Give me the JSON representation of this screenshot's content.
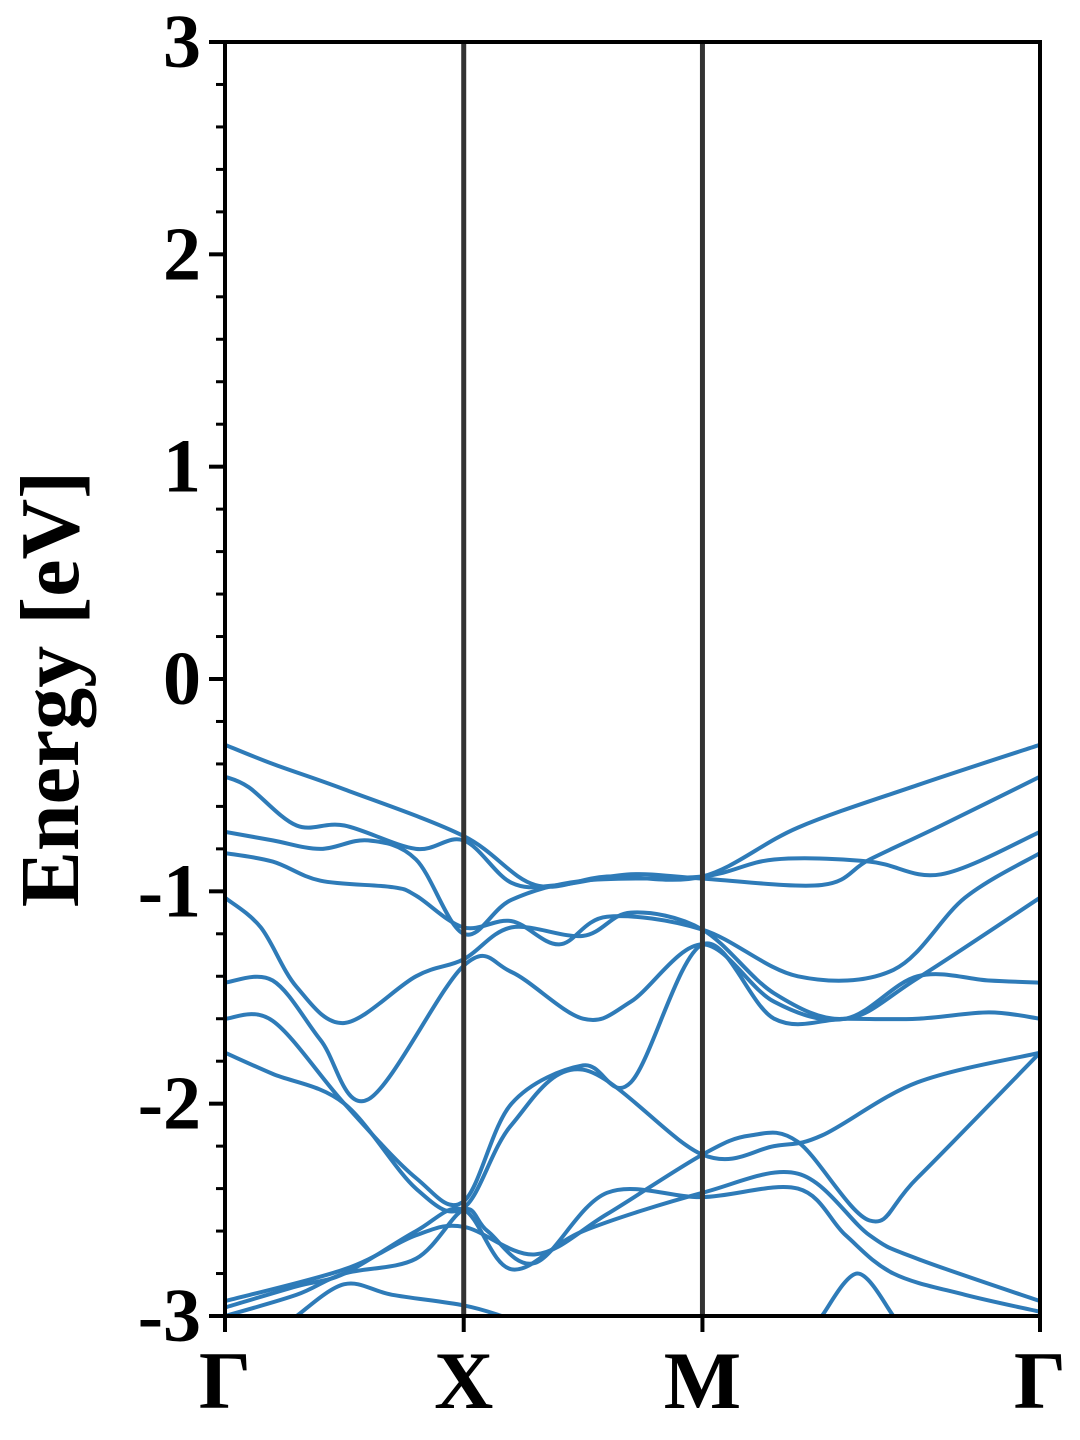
{
  "chart_data": {
    "type": "line",
    "title": "",
    "xlabel": "",
    "ylabel": "Energy [eV]",
    "ylim": [
      -3,
      3
    ],
    "yticks": [
      -3,
      -2,
      -1,
      0,
      1,
      2,
      3
    ],
    "yminor_step": 0.2,
    "grid": false,
    "legend": "none",
    "line_color": "#2e7bb8",
    "divider_color": "#333333",
    "kpath": [
      {
        "label": "Γ",
        "x": 0.0
      },
      {
        "label": "X",
        "x": 1.0
      },
      {
        "label": "M",
        "x": 2.0
      },
      {
        "label": "Γ",
        "x": 3.414
      }
    ],
    "xlim": [
      0.0,
      3.414
    ],
    "series": [
      {
        "x": [
          0,
          0.2,
          0.5,
          1.0,
          1.3,
          1.6,
          2.0,
          2.4,
          2.9,
          3.414
        ],
        "y": [
          -0.31,
          -0.4,
          -0.52,
          -0.74,
          -0.97,
          -0.93,
          -0.93,
          -0.7,
          -0.5,
          -0.31
        ]
      },
      {
        "x": [
          0,
          0.1,
          0.3,
          0.5,
          0.8,
          1.0,
          1.2,
          1.4,
          1.7,
          2.0,
          2.5,
          2.7,
          3.0,
          3.414
        ],
        "y": [
          -0.46,
          -0.51,
          -0.69,
          -0.69,
          -0.8,
          -0.76,
          -0.96,
          -0.97,
          -0.92,
          -0.94,
          -0.97,
          -0.85,
          -0.69,
          -0.46
        ]
      },
      {
        "x": [
          0,
          0.2,
          0.4,
          0.6,
          0.8,
          1.0,
          1.2,
          1.5,
          2.0,
          2.3,
          2.7,
          3.0,
          3.414
        ],
        "y": [
          -0.72,
          -0.76,
          -0.8,
          -0.76,
          -0.85,
          -1.2,
          -1.04,
          -0.95,
          -0.93,
          -0.85,
          -0.86,
          -0.92,
          -0.72
        ]
      },
      {
        "x": [
          0,
          0.2,
          0.4,
          0.7,
          0.8,
          1.0,
          1.2,
          1.4,
          1.6,
          2.0,
          2.4,
          2.8,
          3.1,
          3.414
        ],
        "y": [
          -0.82,
          -0.86,
          -0.95,
          -0.98,
          -1.02,
          -1.17,
          -1.14,
          -1.25,
          -1.12,
          -1.18,
          -1.4,
          -1.37,
          -1.03,
          -0.82
        ]
      },
      {
        "x": [
          0,
          0.15,
          0.3,
          0.5,
          0.8,
          1.0,
          1.2,
          1.5,
          1.7,
          2.0,
          2.3,
          2.6,
          2.9,
          3.414
        ],
        "y": [
          -1.03,
          -1.17,
          -1.45,
          -1.62,
          -1.4,
          -1.32,
          -1.17,
          -1.21,
          -1.1,
          -1.18,
          -1.48,
          -1.6,
          -1.41,
          -1.03
        ]
      },
      {
        "x": [
          0,
          0.2,
          0.4,
          0.6,
          1.0,
          1.2,
          1.5,
          1.7,
          2.0,
          2.3,
          2.6,
          2.9,
          3.2,
          3.414
        ],
        "y": [
          -1.43,
          -1.42,
          -1.7,
          -1.98,
          -1.35,
          -1.38,
          -1.6,
          -1.52,
          -1.25,
          -1.52,
          -1.6,
          -1.4,
          -1.42,
          -1.43
        ]
      },
      {
        "x": [
          0,
          0.2,
          0.5,
          0.8,
          1.0,
          1.2,
          1.5,
          1.7,
          2.0,
          2.3,
          2.6,
          2.9,
          3.2,
          3.414
        ],
        "y": [
          -1.6,
          -1.61,
          -2.0,
          -2.35,
          -2.46,
          -2.0,
          -1.82,
          -1.9,
          -1.25,
          -1.6,
          -1.6,
          -1.6,
          -1.57,
          -1.6
        ]
      },
      {
        "x": [
          0,
          0.2,
          0.5,
          0.8,
          1.0,
          1.2,
          1.5,
          2.0,
          2.3,
          2.5,
          2.9,
          3.414
        ],
        "y": [
          -1.76,
          -1.86,
          -2.0,
          -2.4,
          -2.49,
          -2.1,
          -1.84,
          -2.24,
          -2.2,
          -2.15,
          -1.9,
          -1.76
        ]
      },
      {
        "x": [
          0,
          0.5,
          0.8,
          1.0,
          1.3,
          1.6,
          2.0,
          2.2,
          2.4,
          2.7,
          2.9,
          3.414
        ],
        "y": [
          -2.93,
          -2.78,
          -2.62,
          -2.58,
          -2.71,
          -2.52,
          -2.24,
          -2.15,
          -2.18,
          -2.55,
          -2.35,
          -1.76
        ]
      },
      {
        "x": [
          0,
          0.3,
          0.5,
          0.8,
          1.0,
          1.2,
          1.5,
          2.0,
          2.4,
          2.7,
          2.9,
          3.414
        ],
        "y": [
          -2.96,
          -2.86,
          -2.8,
          -2.6,
          -2.5,
          -2.78,
          -2.6,
          -2.42,
          -2.33,
          -2.62,
          -2.73,
          -2.93
        ]
      },
      {
        "x": [
          0,
          0.3,
          0.5,
          0.8,
          1.0,
          1.1,
          1.3,
          1.6,
          2.0,
          2.4,
          2.6,
          2.8,
          3.1,
          3.414
        ],
        "y": [
          -3.0,
          -2.9,
          -2.8,
          -2.73,
          -2.5,
          -2.6,
          -2.75,
          -2.42,
          -2.44,
          -2.4,
          -2.62,
          -2.8,
          -2.9,
          -2.98
        ]
      },
      {
        "x": [
          0.3,
          0.5,
          0.7,
          1.0,
          1.16
        ],
        "y": [
          -3.0,
          -2.85,
          -2.9,
          -2.95,
          -3.0
        ]
      },
      {
        "x": [
          2.5,
          2.65,
          2.8
        ],
        "y": [
          -3.0,
          -2.8,
          -3.0
        ]
      }
    ]
  }
}
